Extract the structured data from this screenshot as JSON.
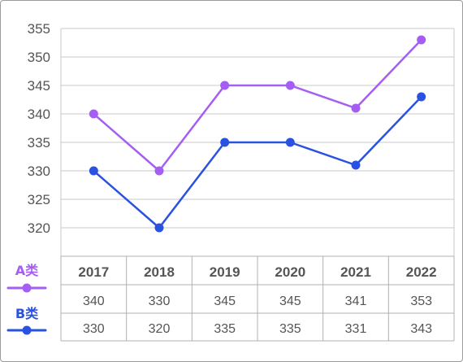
{
  "chart_data": {
    "type": "line",
    "categories": [
      "2017",
      "2018",
      "2019",
      "2020",
      "2021",
      "2022"
    ],
    "series": [
      {
        "name": "A类",
        "values": [
          340,
          330,
          345,
          345,
          341,
          353
        ],
        "color": "#a55ef3"
      },
      {
        "name": "B类",
        "values": [
          330,
          320,
          335,
          335,
          331,
          343
        ],
        "color": "#2a52e0"
      }
    ],
    "table": {
      "rows": [
        [
          "340",
          "330",
          "345",
          "345",
          "341",
          "353"
        ],
        [
          "330",
          "320",
          "335",
          "335",
          "331",
          "343"
        ]
      ]
    },
    "yticks": [
      "355",
      "350",
      "345",
      "340",
      "335",
      "330",
      "325",
      "320"
    ],
    "ylim": [
      320,
      355
    ],
    "grid": true,
    "title": "",
    "xlabel": "",
    "ylabel": ""
  }
}
